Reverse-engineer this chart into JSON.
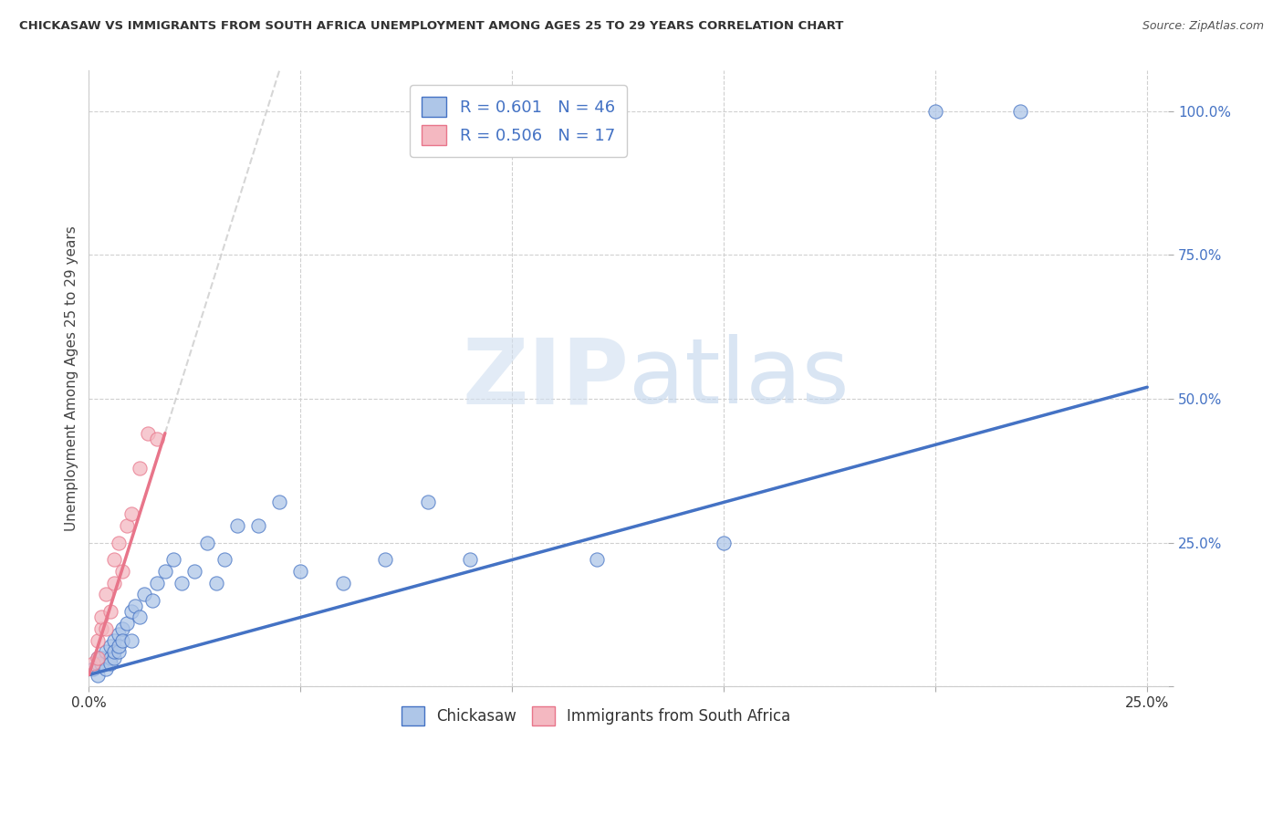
{
  "title": "CHICKASAW VS IMMIGRANTS FROM SOUTH AFRICA UNEMPLOYMENT AMONG AGES 25 TO 29 YEARS CORRELATION CHART",
  "source": "Source: ZipAtlas.com",
  "ylabel": "Unemployment Among Ages 25 to 29 years",
  "xlim": [
    0.0,
    0.25
  ],
  "ylim": [
    0.0,
    1.05
  ],
  "xticks": [
    0.0,
    0.05,
    0.1,
    0.15,
    0.2,
    0.25
  ],
  "yticks": [
    0.0,
    0.25,
    0.5,
    0.75,
    1.0
  ],
  "xticklabels": [
    "0.0%",
    "",
    "",
    "",
    "",
    "25.0%"
  ],
  "yticklabels": [
    "",
    "25.0%",
    "50.0%",
    "75.0%",
    "100.0%"
  ],
  "chickasaw_R": 0.601,
  "chickasaw_N": 46,
  "sa_R": 0.506,
  "sa_N": 17,
  "chickasaw_color": "#aec6e8",
  "sa_color": "#f4b8c1",
  "chickasaw_line_color": "#4472c4",
  "sa_line_color": "#e8758a",
  "watermark": "ZIPatlas",
  "background_color": "#ffffff",
  "grid_color": "#d0d0d0",
  "legend_R_N_color": "#4472c4",
  "chickasaw_x": [
    0.001,
    0.002,
    0.002,
    0.002,
    0.003,
    0.003,
    0.004,
    0.004,
    0.005,
    0.005,
    0.005,
    0.006,
    0.006,
    0.006,
    0.007,
    0.007,
    0.007,
    0.008,
    0.008,
    0.009,
    0.01,
    0.01,
    0.011,
    0.012,
    0.013,
    0.015,
    0.016,
    0.018,
    0.02,
    0.022,
    0.025,
    0.028,
    0.03,
    0.032,
    0.035,
    0.04,
    0.045,
    0.05,
    0.06,
    0.07,
    0.08,
    0.09,
    0.12,
    0.15,
    0.2,
    0.22
  ],
  "chickasaw_y": [
    0.03,
    0.04,
    0.05,
    0.02,
    0.04,
    0.05,
    0.06,
    0.03,
    0.05,
    0.07,
    0.04,
    0.08,
    0.05,
    0.06,
    0.09,
    0.06,
    0.07,
    0.1,
    0.08,
    0.11,
    0.13,
    0.08,
    0.14,
    0.12,
    0.16,
    0.15,
    0.18,
    0.2,
    0.22,
    0.18,
    0.2,
    0.25,
    0.18,
    0.22,
    0.28,
    0.28,
    0.32,
    0.2,
    0.18,
    0.22,
    0.32,
    0.22,
    0.22,
    0.25,
    1.0,
    1.0
  ],
  "sa_x": [
    0.001,
    0.002,
    0.002,
    0.003,
    0.003,
    0.004,
    0.004,
    0.005,
    0.006,
    0.006,
    0.007,
    0.008,
    0.009,
    0.01,
    0.012,
    0.014,
    0.016
  ],
  "sa_y": [
    0.04,
    0.05,
    0.08,
    0.1,
    0.12,
    0.1,
    0.16,
    0.13,
    0.18,
    0.22,
    0.25,
    0.2,
    0.28,
    0.3,
    0.38,
    0.44,
    0.43
  ],
  "blue_line_x0": 0.0,
  "blue_line_y0": 0.02,
  "blue_line_x1": 0.25,
  "blue_line_y1": 0.52,
  "pink_line_x0": 0.0,
  "pink_line_y0": 0.02,
  "pink_line_x1": 0.018,
  "pink_line_y1": 0.44
}
